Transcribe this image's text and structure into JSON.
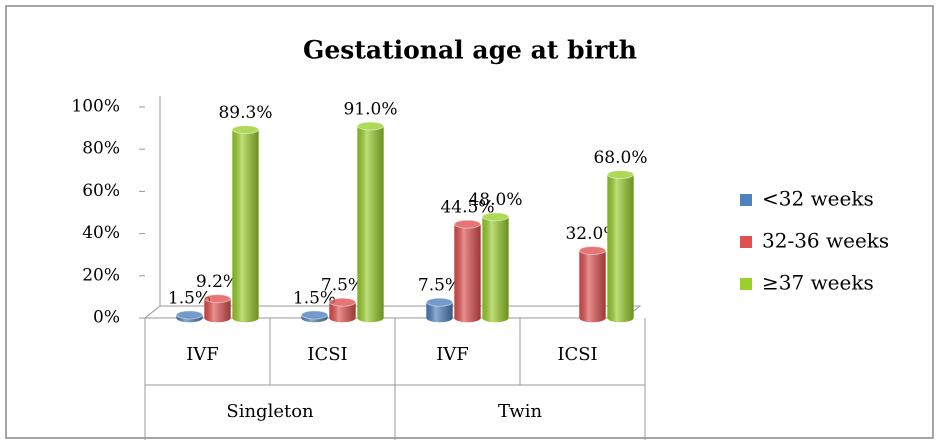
{
  "chart_data": {
    "type": "bar",
    "title": "Gestational age at birth",
    "categories": [
      "IVF",
      "ICSI",
      "IVF",
      "ICSI"
    ],
    "groups": [
      "Singleton",
      "Twin"
    ],
    "series": [
      {
        "name": "<32 weeks",
        "color": "#4f81bd",
        "values": [
          1.5,
          1.5,
          7.5,
          null
        ],
        "value_labels": [
          "1.5%",
          "1.5%",
          "7.5%",
          null
        ]
      },
      {
        "name": "32-36 weeks",
        "color": "#e05252",
        "values": [
          9.2,
          7.5,
          44.5,
          32.0
        ],
        "value_labels": [
          "9.2%",
          "7.5%",
          "44.5%",
          "32.0%"
        ]
      },
      {
        "name": "≥37 weeks",
        "color": "#9bcf2e",
        "values": [
          89.3,
          91.0,
          48.0,
          68.0
        ],
        "value_labels": [
          "89.3%",
          "91.0%",
          "48.0%",
          "68.0%"
        ]
      }
    ],
    "ylim": [
      0,
      100
    ],
    "yticks": [
      {
        "value": 0,
        "label": "0%"
      },
      {
        "value": 20,
        "label": "20%"
      },
      {
        "value": 40,
        "label": "40%"
      },
      {
        "value": 60,
        "label": "60%"
      },
      {
        "value": 80,
        "label": "80%"
      },
      {
        "value": 100,
        "label": "100%"
      }
    ],
    "legend": "right"
  }
}
